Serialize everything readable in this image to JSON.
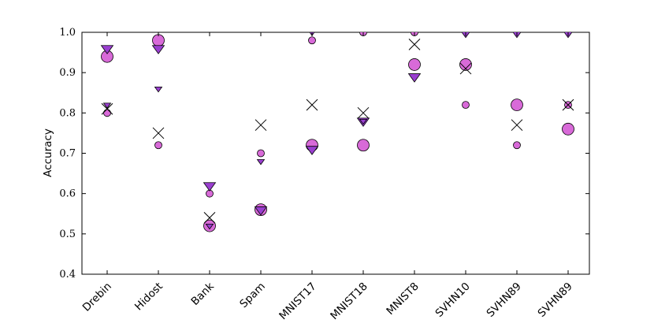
{
  "chart_data": {
    "type": "scatter",
    "title": "",
    "xlabel": "",
    "ylabel": "Accuracy",
    "ylim": [
      0.4,
      1.0
    ],
    "yticks": [
      "0.4",
      "0.5",
      "0.6",
      "0.7",
      "0.8",
      "0.9",
      "1.0"
    ],
    "grid": false,
    "categories": [
      "Drebin",
      "Hidost",
      "Bank",
      "Spam",
      "MNIST17",
      "MNIST18",
      "MNIST8",
      "SVHN10",
      "SVHN89",
      "SVHN89"
    ],
    "colors": {
      "circle_fill": "#d86ad8",
      "triangle_fill": "#9a3fd0",
      "edge": "#000000",
      "cross": "#000000"
    },
    "series": [
      {
        "marker": "large-circle",
        "values": [
          0.94,
          0.98,
          0.52,
          0.56,
          0.72,
          0.72,
          0.92,
          0.92,
          0.82,
          0.76
        ]
      },
      {
        "marker": "small-circle",
        "values": [
          0.8,
          0.72,
          0.6,
          0.7,
          0.98,
          1.0,
          1.0,
          0.82,
          0.72,
          0.82
        ]
      },
      {
        "marker": "large-triangle",
        "values": [
          0.96,
          0.96,
          0.62,
          0.56,
          0.71,
          0.78,
          0.89,
          1.0,
          1.0,
          1.0
        ]
      },
      {
        "marker": "small-triangle",
        "values": [
          0.82,
          0.86,
          0.52,
          0.68,
          1.0,
          0.78,
          null,
          null,
          null,
          null
        ]
      },
      {
        "marker": "cross",
        "values": [
          0.81,
          0.75,
          0.54,
          0.77,
          0.82,
          0.8,
          0.97,
          0.91,
          0.77,
          0.82
        ]
      }
    ]
  }
}
